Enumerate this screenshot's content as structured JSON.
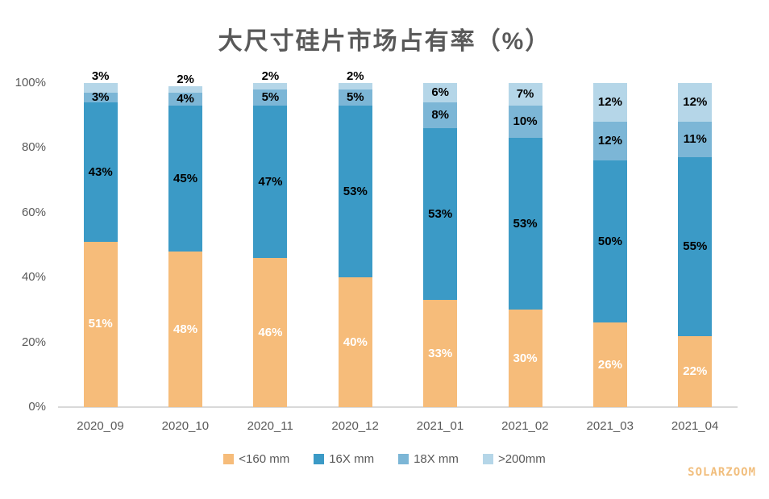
{
  "title": "大尺寸硅片市场占有率（%）",
  "watermark": "SOLARZOOM",
  "colors": {
    "title_text": "#595959",
    "axis_text": "#595959",
    "axis_line": "#D9D9D9",
    "legend_text": "#595959",
    "watermark_text": "#F1BE7D",
    "label_on_first_series": "#FFFFFF",
    "label_on_other_series": "#000000",
    "series": [
      "#F6BC7A",
      "#3B9AC6",
      "#7CB6D6",
      "#B5D6E8"
    ]
  },
  "chart_data": {
    "type": "bar",
    "stacked": true,
    "title": "大尺寸硅片市场占有率（%）",
    "xlabel": "",
    "ylabel": "",
    "ylim": [
      0,
      100
    ],
    "grid": false,
    "legend_position": "bottom",
    "categories": [
      "2020_09",
      "2020_10",
      "2020_11",
      "2020_12",
      "2021_01",
      "2021_02",
      "2021_03",
      "2021_04"
    ],
    "series": [
      {
        "name": "<160 mm",
        "values": [
          51,
          48,
          46,
          40,
          33,
          30,
          26,
          22
        ]
      },
      {
        "name": "16X mm",
        "values": [
          43,
          45,
          47,
          53,
          53,
          53,
          50,
          55
        ]
      },
      {
        "name": "18X mm",
        "values": [
          3,
          4,
          5,
          5,
          8,
          10,
          12,
          11
        ]
      },
      {
        "name": ">200mm",
        "values": [
          3,
          2,
          2,
          2,
          6,
          7,
          12,
          12
        ]
      }
    ],
    "data_label_suffix": "%",
    "y_ticks": [
      {
        "label": "0%",
        "value": 0
      },
      {
        "label": "20%",
        "value": 20
      },
      {
        "label": "40%",
        "value": 40
      },
      {
        "label": "60%",
        "value": 60
      },
      {
        "label": "80%",
        "value": 80
      },
      {
        "label": "100%",
        "value": 100
      }
    ]
  }
}
